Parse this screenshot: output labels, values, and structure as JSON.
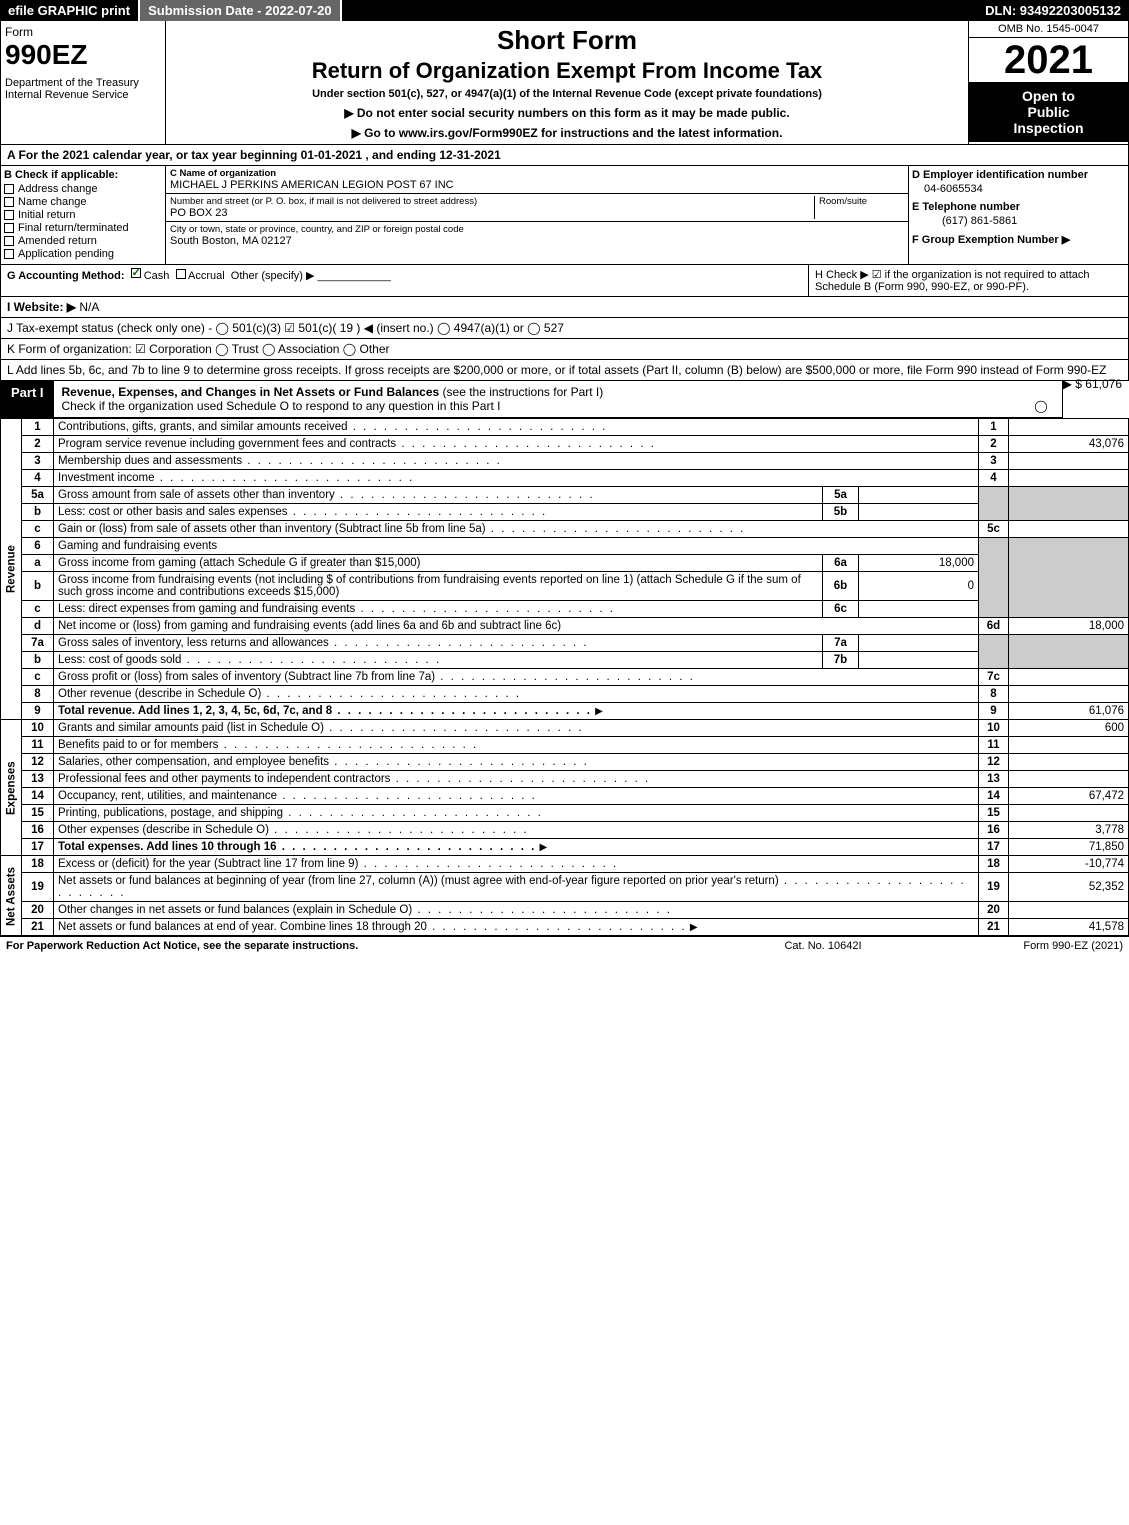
{
  "topbar": {
    "efile": "efile GRAPHIC print",
    "submission": "Submission Date - 2022-07-20",
    "dln": "DLN: 93492203005132"
  },
  "header": {
    "form_word": "Form",
    "form_no": "990EZ",
    "dept": "Department of the Treasury\nInternal Revenue Service",
    "short_form": "Short Form",
    "return_title": "Return of Organization Exempt From Income Tax",
    "under_section": "Under section 501(c), 527, or 4947(a)(1) of the Internal Revenue Code (except private foundations)",
    "no_ssn": "▶ Do not enter social security numbers on this form as it may be made public.",
    "goto": "▶ Go to www.irs.gov/Form990EZ for instructions and the latest information.",
    "omb": "OMB No. 1545-0047",
    "year": "2021",
    "inspect1": "Open to",
    "inspect2": "Public",
    "inspect3": "Inspection"
  },
  "line_a": "A  For the 2021 calendar year, or tax year beginning 01-01-2021 , and ending 12-31-2021",
  "section_b": {
    "hdr": "B  Check if applicable:",
    "items": [
      "Address change",
      "Name change",
      "Initial return",
      "Final return/terminated",
      "Amended return",
      "Application pending"
    ]
  },
  "section_c": {
    "name_lbl": "C Name of organization",
    "name": "MICHAEL J PERKINS AMERICAN LEGION POST 67 INC",
    "addr_lbl": "Number and street (or P. O. box, if mail is not delivered to street address)",
    "room_lbl": "Room/suite",
    "addr": "PO BOX 23",
    "city_lbl": "City or town, state or province, country, and ZIP or foreign postal code",
    "city": "South Boston, MA  02127"
  },
  "section_d": {
    "ein_lbl": "D Employer identification number",
    "ein": "04-6065534",
    "phone_lbl": "E Telephone number",
    "phone": "(617) 861-5861",
    "group_lbl": "F Group Exemption Number   ▶"
  },
  "line_g": {
    "lbl": "G Accounting Method:",
    "cash": "Cash",
    "accrual": "Accrual",
    "other": "Other (specify) ▶"
  },
  "line_h": "H  Check ▶ ☑ if the organization is not required to attach Schedule B (Form 990, 990-EZ, or 990-PF).",
  "line_i": {
    "lbl": "I Website: ▶",
    "val": "N/A"
  },
  "line_j": "J Tax-exempt status (check only one) - ◯ 501(c)(3)  ☑ 501(c)( 19 ) ◀ (insert no.)  ◯ 4947(a)(1) or  ◯ 527",
  "line_k": "K Form of organization:  ☑ Corporation  ◯ Trust  ◯ Association  ◯ Other",
  "line_l": {
    "text": "L Add lines 5b, 6c, and 7b to line 9 to determine gross receipts. If gross receipts are $200,000 or more, or if total assets (Part II, column (B) below) are $500,000 or more, file Form 990 instead of Form 990-EZ",
    "amount": "▶ $ 61,076"
  },
  "part1": {
    "tab": "Part I",
    "title_bold": "Revenue, Expenses, and Changes in Net Assets or Fund Balances",
    "title_rest": " (see the instructions for Part I)",
    "check_line": "Check if the organization used Schedule O to respond to any question in this Part I",
    "check_val": "◯"
  },
  "sections": {
    "revenue": "Revenue",
    "expenses": "Expenses",
    "netassets": "Net Assets"
  },
  "rows": {
    "r1": {
      "n": "1",
      "d": "Contributions, gifts, grants, and similar amounts received",
      "rn": "1",
      "v": ""
    },
    "r2": {
      "n": "2",
      "d": "Program service revenue including government fees and contracts",
      "rn": "2",
      "v": "43,076"
    },
    "r3": {
      "n": "3",
      "d": "Membership dues and assessments",
      "rn": "3",
      "v": ""
    },
    "r4": {
      "n": "4",
      "d": "Investment income",
      "rn": "4",
      "v": ""
    },
    "r5a": {
      "n": "5a",
      "d": "Gross amount from sale of assets other than inventory",
      "sl": "5a",
      "sv": ""
    },
    "r5b": {
      "n": "b",
      "d": "Less: cost or other basis and sales expenses",
      "sl": "5b",
      "sv": ""
    },
    "r5c": {
      "n": "c",
      "d": "Gain or (loss) from sale of assets other than inventory (Subtract line 5b from line 5a)",
      "rn": "5c",
      "v": ""
    },
    "r6": {
      "n": "6",
      "d": "Gaming and fundraising events"
    },
    "r6a": {
      "n": "a",
      "d": "Gross income from gaming (attach Schedule G if greater than $15,000)",
      "sl": "6a",
      "sv": "18,000"
    },
    "r6b": {
      "n": "b",
      "d": "Gross income from fundraising events (not including $                 of contributions from fundraising events reported on line 1) (attach Schedule G if the sum of such gross income and contributions exceeds $15,000)",
      "sl": "6b",
      "sv": "0"
    },
    "r6c": {
      "n": "c",
      "d": "Less: direct expenses from gaming and fundraising events",
      "sl": "6c",
      "sv": ""
    },
    "r6d": {
      "n": "d",
      "d": "Net income or (loss) from gaming and fundraising events (add lines 6a and 6b and subtract line 6c)",
      "rn": "6d",
      "v": "18,000"
    },
    "r7a": {
      "n": "7a",
      "d": "Gross sales of inventory, less returns and allowances",
      "sl": "7a",
      "sv": ""
    },
    "r7b": {
      "n": "b",
      "d": "Less: cost of goods sold",
      "sl": "7b",
      "sv": ""
    },
    "r7c": {
      "n": "c",
      "d": "Gross profit or (loss) from sales of inventory (Subtract line 7b from line 7a)",
      "rn": "7c",
      "v": ""
    },
    "r8": {
      "n": "8",
      "d": "Other revenue (describe in Schedule O)",
      "rn": "8",
      "v": ""
    },
    "r9": {
      "n": "9",
      "d": "Total revenue. Add lines 1, 2, 3, 4, 5c, 6d, 7c, and 8",
      "rn": "9",
      "v": "61,076",
      "arrow": true,
      "bold": true
    },
    "r10": {
      "n": "10",
      "d": "Grants and similar amounts paid (list in Schedule O)",
      "rn": "10",
      "v": "600"
    },
    "r11": {
      "n": "11",
      "d": "Benefits paid to or for members",
      "rn": "11",
      "v": ""
    },
    "r12": {
      "n": "12",
      "d": "Salaries, other compensation, and employee benefits",
      "rn": "12",
      "v": ""
    },
    "r13": {
      "n": "13",
      "d": "Professional fees and other payments to independent contractors",
      "rn": "13",
      "v": ""
    },
    "r14": {
      "n": "14",
      "d": "Occupancy, rent, utilities, and maintenance",
      "rn": "14",
      "v": "67,472"
    },
    "r15": {
      "n": "15",
      "d": "Printing, publications, postage, and shipping",
      "rn": "15",
      "v": ""
    },
    "r16": {
      "n": "16",
      "d": "Other expenses (describe in Schedule O)",
      "rn": "16",
      "v": "3,778"
    },
    "r17": {
      "n": "17",
      "d": "Total expenses. Add lines 10 through 16",
      "rn": "17",
      "v": "71,850",
      "arrow": true,
      "bold": true
    },
    "r18": {
      "n": "18",
      "d": "Excess or (deficit) for the year (Subtract line 17 from line 9)",
      "rn": "18",
      "v": "-10,774"
    },
    "r19": {
      "n": "19",
      "d": "Net assets or fund balances at beginning of year (from line 27, column (A)) (must agree with end-of-year figure reported on prior year's return)",
      "rn": "19",
      "v": "52,352"
    },
    "r20": {
      "n": "20",
      "d": "Other changes in net assets or fund balances (explain in Schedule O)",
      "rn": "20",
      "v": ""
    },
    "r21": {
      "n": "21",
      "d": "Net assets or fund balances at end of year. Combine lines 18 through 20",
      "rn": "21",
      "v": "41,578",
      "arrow": true
    }
  },
  "footer": {
    "left": "For Paperwork Reduction Act Notice, see the separate instructions.",
    "center": "Cat. No. 10642I",
    "right": "Form 990-EZ (2021)"
  },
  "colors": {
    "black": "#000000",
    "white": "#ffffff",
    "gray": "#666666",
    "shade": "#cccccc",
    "green": "#006600"
  }
}
